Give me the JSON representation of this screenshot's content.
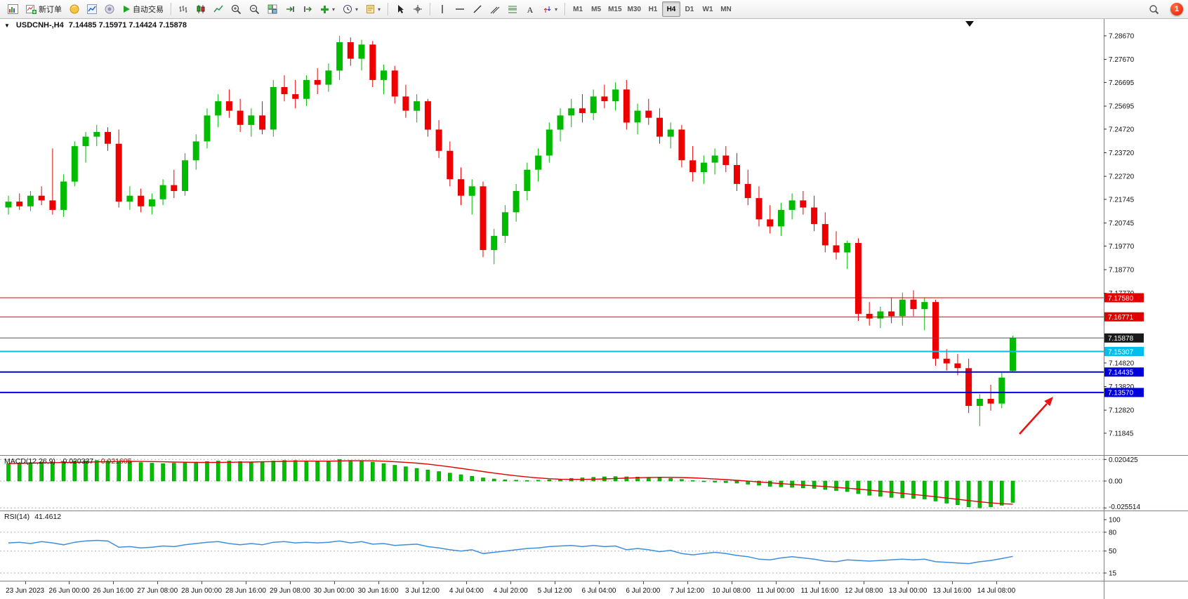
{
  "colors": {
    "up": "#00bb00",
    "down": "#ee0000",
    "macd_hist": "#00c000",
    "macd_signal": "#e00000",
    "rsi_line": "#3e8ede"
  },
  "toolbar": {
    "new_order": "新订单",
    "autotrade": "自动交易",
    "timeframes": [
      "M1",
      "M5",
      "M15",
      "M30",
      "H1",
      "H4",
      "D1",
      "W1",
      "MN"
    ],
    "active_timeframe": "H4",
    "badge_count": "1"
  },
  "chart": {
    "symbol_period": "USDCNH-,H4",
    "ohlc": "7.14485 7.15971 7.14424 7.15878"
  },
  "indicators": {
    "macd": {
      "name": "MACD(12,26,9)",
      "value1": "-0.020337",
      "value2": "-0.021605",
      "axis": [
        "0.020425",
        "0.00",
        "-0.025514"
      ]
    },
    "rsi": {
      "name": "RSI(14)",
      "value": "41.4612",
      "axis": [
        "100",
        "80",
        "50",
        "15"
      ]
    }
  },
  "price_axis": {
    "labels": [
      "7.28670",
      "7.27670",
      "7.26695",
      "7.25695",
      "7.24720",
      "7.23720",
      "7.22720",
      "7.21745",
      "7.20745",
      "7.19770",
      "7.18770",
      "7.17770",
      "7.14820",
      "7.13820",
      "7.12820",
      "7.11845"
    ],
    "tags": [
      {
        "text": "7.17580",
        "price": 7.1758,
        "bg": "#e00000",
        "line_color": "#e00000",
        "line_width": 1
      },
      {
        "text": "7.16771",
        "price": 7.16771,
        "bg": "#e00000",
        "line_color": "#e00000",
        "line_width": 1
      },
      {
        "text": "7.15878",
        "price": 7.15878,
        "bg": "#1a1a1a",
        "line_color": "#555555",
        "line_width": 1
      },
      {
        "text": "7.15307",
        "price": 7.15307,
        "bg": "#00bfea",
        "line_color": "#00bfea",
        "line_width": 2
      },
      {
        "text": "7.14435",
        "price": 7.14435,
        "bg": "#0000d8",
        "line_color": "#0000d8",
        "line_width": 2
      },
      {
        "text": "7.13570",
        "price": 7.1357,
        "bg": "#0000d8",
        "line_color": "#0000d8",
        "line_width": 2
      }
    ]
  },
  "time_axis": [
    "23 Jun 2023",
    "26 Jun 00:00",
    "26 Jun 16:00",
    "27 Jun 08:00",
    "28 Jun 00:00",
    "28 Jun 16:00",
    "29 Jun 08:00",
    "30 Jun 00:00",
    "30 Jun 16:00",
    "3 Jul 12:00",
    "4 Jul 04:00",
    "4 Jul 20:00",
    "5 Jul 12:00",
    "6 Jul 04:00",
    "6 Jul 20:00",
    "7 Jul 12:00",
    "10 Jul 08:00",
    "11 Jul 00:00",
    "11 Jul 16:00",
    "12 Jul 08:00",
    "13 Jul 00:00",
    "13 Jul 16:00",
    "14 Jul 08:00"
  ],
  "annotations": {
    "arrow_color": "#ee1111"
  },
  "chart_data": [
    {
      "type": "candlestick",
      "title": "USDCNH-,H4",
      "ylim": [
        7.116,
        7.292
      ],
      "values_format": "[open, high, low, close]",
      "candles": [
        [
          7.214,
          7.219,
          7.211,
          7.2165
        ],
        [
          7.2165,
          7.22,
          7.213,
          7.2145
        ],
        [
          7.2145,
          7.221,
          7.2125,
          7.219
        ],
        [
          7.219,
          7.223,
          7.215,
          7.217
        ],
        [
          7.217,
          7.239,
          7.211,
          7.213
        ],
        [
          7.213,
          7.228,
          7.21,
          7.225
        ],
        [
          7.225,
          7.242,
          7.223,
          7.24
        ],
        [
          7.24,
          7.246,
          7.233,
          7.244
        ],
        [
          7.244,
          7.249,
          7.24,
          7.246
        ],
        [
          7.246,
          7.248,
          7.238,
          7.241
        ],
        [
          7.241,
          7.247,
          7.214,
          7.2165
        ],
        [
          7.2165,
          7.223,
          7.213,
          7.219
        ],
        [
          7.219,
          7.222,
          7.212,
          7.2145
        ],
        [
          7.2145,
          7.22,
          7.211,
          7.2175
        ],
        [
          7.2175,
          7.226,
          7.215,
          7.2235
        ],
        [
          7.2235,
          7.23,
          7.218,
          7.221
        ],
        [
          7.221,
          7.237,
          7.219,
          7.234
        ],
        [
          7.234,
          7.245,
          7.23,
          7.242
        ],
        [
          7.242,
          7.256,
          7.239,
          7.253
        ],
        [
          7.253,
          7.262,
          7.248,
          7.259
        ],
        [
          7.259,
          7.264,
          7.252,
          7.255
        ],
        [
          7.255,
          7.26,
          7.246,
          7.249
        ],
        [
          7.249,
          7.256,
          7.244,
          7.253
        ],
        [
          7.253,
          7.259,
          7.245,
          7.247
        ],
        [
          7.247,
          7.268,
          7.244,
          7.265
        ],
        [
          7.265,
          7.27,
          7.259,
          7.262
        ],
        [
          7.262,
          7.268,
          7.256,
          7.26
        ],
        [
          7.26,
          7.27,
          7.257,
          7.268
        ],
        [
          7.268,
          7.273,
          7.262,
          7.266
        ],
        [
          7.266,
          7.275,
          7.263,
          7.272
        ],
        [
          7.272,
          7.2867,
          7.268,
          7.284
        ],
        [
          7.284,
          7.286,
          7.274,
          7.277
        ],
        [
          7.277,
          7.285,
          7.272,
          7.283
        ],
        [
          7.283,
          7.2845,
          7.265,
          7.268
        ],
        [
          7.268,
          7.2745,
          7.262,
          7.272
        ],
        [
          7.272,
          7.274,
          7.258,
          7.261
        ],
        [
          7.261,
          7.266,
          7.252,
          7.255
        ],
        [
          7.255,
          7.262,
          7.25,
          7.259
        ],
        [
          7.259,
          7.26,
          7.244,
          7.247
        ],
        [
          7.247,
          7.251,
          7.235,
          7.238
        ],
        [
          7.238,
          7.242,
          7.223,
          7.226
        ],
        [
          7.226,
          7.231,
          7.215,
          7.219
        ],
        [
          7.219,
          7.226,
          7.211,
          7.223
        ],
        [
          7.223,
          7.225,
          7.193,
          7.196
        ],
        [
          7.196,
          7.205,
          7.19,
          7.202
        ],
        [
          7.202,
          7.215,
          7.199,
          7.212
        ],
        [
          7.212,
          7.224,
          7.208,
          7.221
        ],
        [
          7.221,
          7.233,
          7.217,
          7.23
        ],
        [
          7.23,
          7.239,
          7.225,
          7.236
        ],
        [
          7.236,
          7.25,
          7.233,
          7.247
        ],
        [
          7.247,
          7.256,
          7.242,
          7.253
        ],
        [
          7.253,
          7.26,
          7.248,
          7.256
        ],
        [
          7.256,
          7.262,
          7.25,
          7.254
        ],
        [
          7.254,
          7.264,
          7.251,
          7.261
        ],
        [
          7.261,
          7.266,
          7.256,
          7.259
        ],
        [
          7.259,
          7.267,
          7.255,
          7.264
        ],
        [
          7.264,
          7.268,
          7.247,
          7.25
        ],
        [
          7.25,
          7.258,
          7.245,
          7.255
        ],
        [
          7.255,
          7.26,
          7.249,
          7.252
        ],
        [
          7.252,
          7.256,
          7.241,
          7.244
        ],
        [
          7.244,
          7.25,
          7.239,
          7.247
        ],
        [
          7.247,
          7.249,
          7.231,
          7.234
        ],
        [
          7.234,
          7.24,
          7.225,
          7.229
        ],
        [
          7.229,
          7.236,
          7.224,
          7.233
        ],
        [
          7.233,
          7.239,
          7.228,
          7.236
        ],
        [
          7.236,
          7.24,
          7.229,
          7.232
        ],
        [
          7.232,
          7.237,
          7.221,
          7.224
        ],
        [
          7.224,
          7.23,
          7.215,
          7.218
        ],
        [
          7.218,
          7.223,
          7.206,
          7.209
        ],
        [
          7.209,
          7.215,
          7.203,
          7.206
        ],
        [
          7.206,
          7.216,
          7.202,
          7.213
        ],
        [
          7.213,
          7.22,
          7.209,
          7.217
        ],
        [
          7.217,
          7.221,
          7.211,
          7.214
        ],
        [
          7.214,
          7.219,
          7.204,
          7.207
        ],
        [
          7.207,
          7.212,
          7.195,
          7.198
        ],
        [
          7.198,
          7.204,
          7.192,
          7.195
        ],
        [
          7.195,
          7.2,
          7.188,
          7.199
        ],
        [
          7.199,
          7.201,
          7.166,
          7.169
        ],
        [
          7.169,
          7.174,
          7.164,
          7.167
        ],
        [
          7.167,
          7.172,
          7.163,
          7.17
        ],
        [
          7.17,
          7.176,
          7.165,
          7.168
        ],
        [
          7.168,
          7.178,
          7.164,
          7.175
        ],
        [
          7.175,
          7.179,
          7.168,
          7.171
        ],
        [
          7.171,
          7.176,
          7.162,
          7.174
        ],
        [
          7.174,
          7.175,
          7.147,
          7.15
        ],
        [
          7.15,
          7.154,
          7.145,
          7.148
        ],
        [
          7.148,
          7.152,
          7.143,
          7.146
        ],
        [
          7.146,
          7.15,
          7.127,
          7.13
        ],
        [
          7.13,
          7.135,
          7.1215,
          7.133
        ],
        [
          7.133,
          7.139,
          7.128,
          7.131
        ],
        [
          7.131,
          7.144,
          7.129,
          7.142
        ],
        [
          7.14485,
          7.15971,
          7.14424,
          7.15878
        ]
      ]
    },
    {
      "type": "bar",
      "title": "MACD(12,26,9)",
      "ylim": [
        -0.025514,
        0.020425
      ],
      "values": [
        0.0165,
        0.017,
        0.0175,
        0.018,
        0.018,
        0.0185,
        0.019,
        0.019,
        0.0195,
        0.019,
        0.0185,
        0.018,
        0.0175,
        0.017,
        0.0165,
        0.017,
        0.0175,
        0.018,
        0.0185,
        0.019,
        0.019,
        0.0185,
        0.018,
        0.0185,
        0.019,
        0.0195,
        0.0195,
        0.019,
        0.0185,
        0.019,
        0.0204,
        0.0195,
        0.019,
        0.018,
        0.0165,
        0.015,
        0.0135,
        0.012,
        0.0105,
        0.009,
        0.0075,
        0.006,
        0.0045,
        0.003,
        0.002,
        0.0012,
        0.0008,
        0.0005,
        0.0008,
        0.0012,
        0.0018,
        0.0025,
        0.003,
        0.0035,
        0.004,
        0.0042,
        0.004,
        0.0038,
        0.0035,
        0.003,
        0.0025,
        0.0015,
        0.0005,
        -0.0005,
        -0.001,
        -0.0015,
        -0.002,
        -0.003,
        -0.004,
        -0.005,
        -0.0055,
        -0.006,
        -0.0065,
        -0.007,
        -0.008,
        -0.009,
        -0.01,
        -0.012,
        -0.0135,
        -0.0145,
        -0.0155,
        -0.016,
        -0.0165,
        -0.017,
        -0.019,
        -0.021,
        -0.0225,
        -0.0245,
        -0.0255,
        -0.0245,
        -0.023,
        -0.020337
      ]
    },
    {
      "type": "line",
      "title": "RSI(14)",
      "ylim": [
        0,
        100
      ],
      "levels": [
        80,
        50,
        15
      ],
      "values": [
        63,
        64,
        62,
        65,
        63,
        60,
        64,
        66,
        67,
        66,
        56,
        57,
        55,
        56,
        58,
        57,
        60,
        62,
        64,
        65,
        62,
        60,
        62,
        60,
        64,
        65,
        63,
        64,
        63,
        64,
        66,
        63,
        65,
        61,
        62,
        59,
        60,
        61,
        57,
        55,
        52,
        50,
        52,
        46,
        48,
        50,
        52,
        54,
        55,
        57,
        58,
        59,
        57,
        59,
        57,
        58,
        52,
        54,
        52,
        49,
        51,
        46,
        44,
        46,
        48,
        46,
        43,
        41,
        37,
        36,
        39,
        41,
        39,
        37,
        34,
        33,
        36,
        35,
        34,
        35,
        36,
        37,
        36,
        37,
        33,
        32,
        31,
        30,
        33,
        35,
        38,
        41.4612
      ]
    }
  ]
}
